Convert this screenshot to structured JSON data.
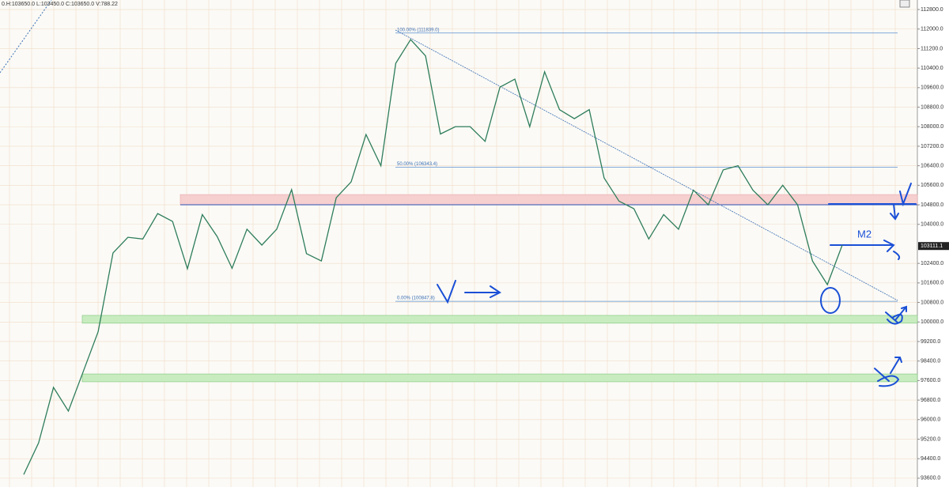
{
  "chart_data": {
    "type": "line",
    "title": "0.H:103650.0 L:103450.0 C:103650.0 V:788.22",
    "values": [
      93750,
      95050,
      97320,
      96350,
      97970,
      99600,
      102830,
      103470,
      103400,
      104440,
      104120,
      102180,
      104400,
      103500,
      102200,
      103800,
      103150,
      103800,
      105420,
      102800,
      102500,
      105090,
      105740,
      107680,
      106400,
      110600,
      111570,
      110900,
      107700,
      108000,
      108000,
      107400,
      109620,
      109950,
      108000,
      110250,
      108700,
      108330,
      108700,
      105900,
      104950,
      104640,
      103400,
      104400,
      103800,
      105400,
      104800,
      106230,
      106400,
      105400,
      104800,
      105600,
      104800,
      102500,
      101530,
      103150
    ],
    "color": "#2e7d5b",
    "ylim": [
      93240,
      113190
    ],
    "yticks": [
      {
        "value": 93600,
        "label": "93600.0"
      },
      {
        "value": 94400,
        "label": "94400.0"
      },
      {
        "value": 95200,
        "label": "95200.0"
      },
      {
        "value": 96000,
        "label": "96000.0"
      },
      {
        "value": 96800,
        "label": "96800.0"
      },
      {
        "value": 97600,
        "label": "97600.0"
      },
      {
        "value": 98400,
        "label": "98400.0"
      },
      {
        "value": 99200,
        "label": "99200.0"
      },
      {
        "value": 100000,
        "label": "100000.0"
      },
      {
        "value": 100800,
        "label": "100800.0"
      },
      {
        "value": 101600,
        "label": "101600.0"
      },
      {
        "value": 102400,
        "label": "102400.0"
      },
      {
        "value": 104000,
        "label": "104000.0"
      },
      {
        "value": 104800,
        "label": "104800.0"
      },
      {
        "value": 105600,
        "label": "105600.0"
      },
      {
        "value": 106400,
        "label": "106400.0"
      },
      {
        "value": 107200,
        "label": "107200.0"
      },
      {
        "value": 108000,
        "label": "108000.0"
      },
      {
        "value": 108800,
        "label": "108800.0"
      },
      {
        "value": 109600,
        "label": "109600.0"
      },
      {
        "value": 110400,
        "label": "110400.0"
      },
      {
        "value": 111200,
        "label": "111200.0"
      },
      {
        "value": 112000,
        "label": "112000.0"
      },
      {
        "value": 112800,
        "label": "112800.0"
      }
    ],
    "grid": true,
    "last_price": {
      "value": 103111.1,
      "label": "103111.1"
    },
    "fib_levels": [
      {
        "value": 111839.0,
        "label": "100.00% (111839.0)"
      },
      {
        "value": 106343.4,
        "label": "50.00% (106343.4)"
      },
      {
        "value": 100847.8,
        "label": "0.00% (100847.8)"
      }
    ],
    "zones": [
      {
        "from": 104800,
        "to": 105220,
        "color": "#f6cfcf"
      },
      {
        "from": 99950,
        "to": 100270,
        "color": "#c8ecc0"
      },
      {
        "from": 97550,
        "to": 97870,
        "color": "#c8ecc0"
      }
    ],
    "level_line": 104800,
    "annotation": "M2"
  }
}
